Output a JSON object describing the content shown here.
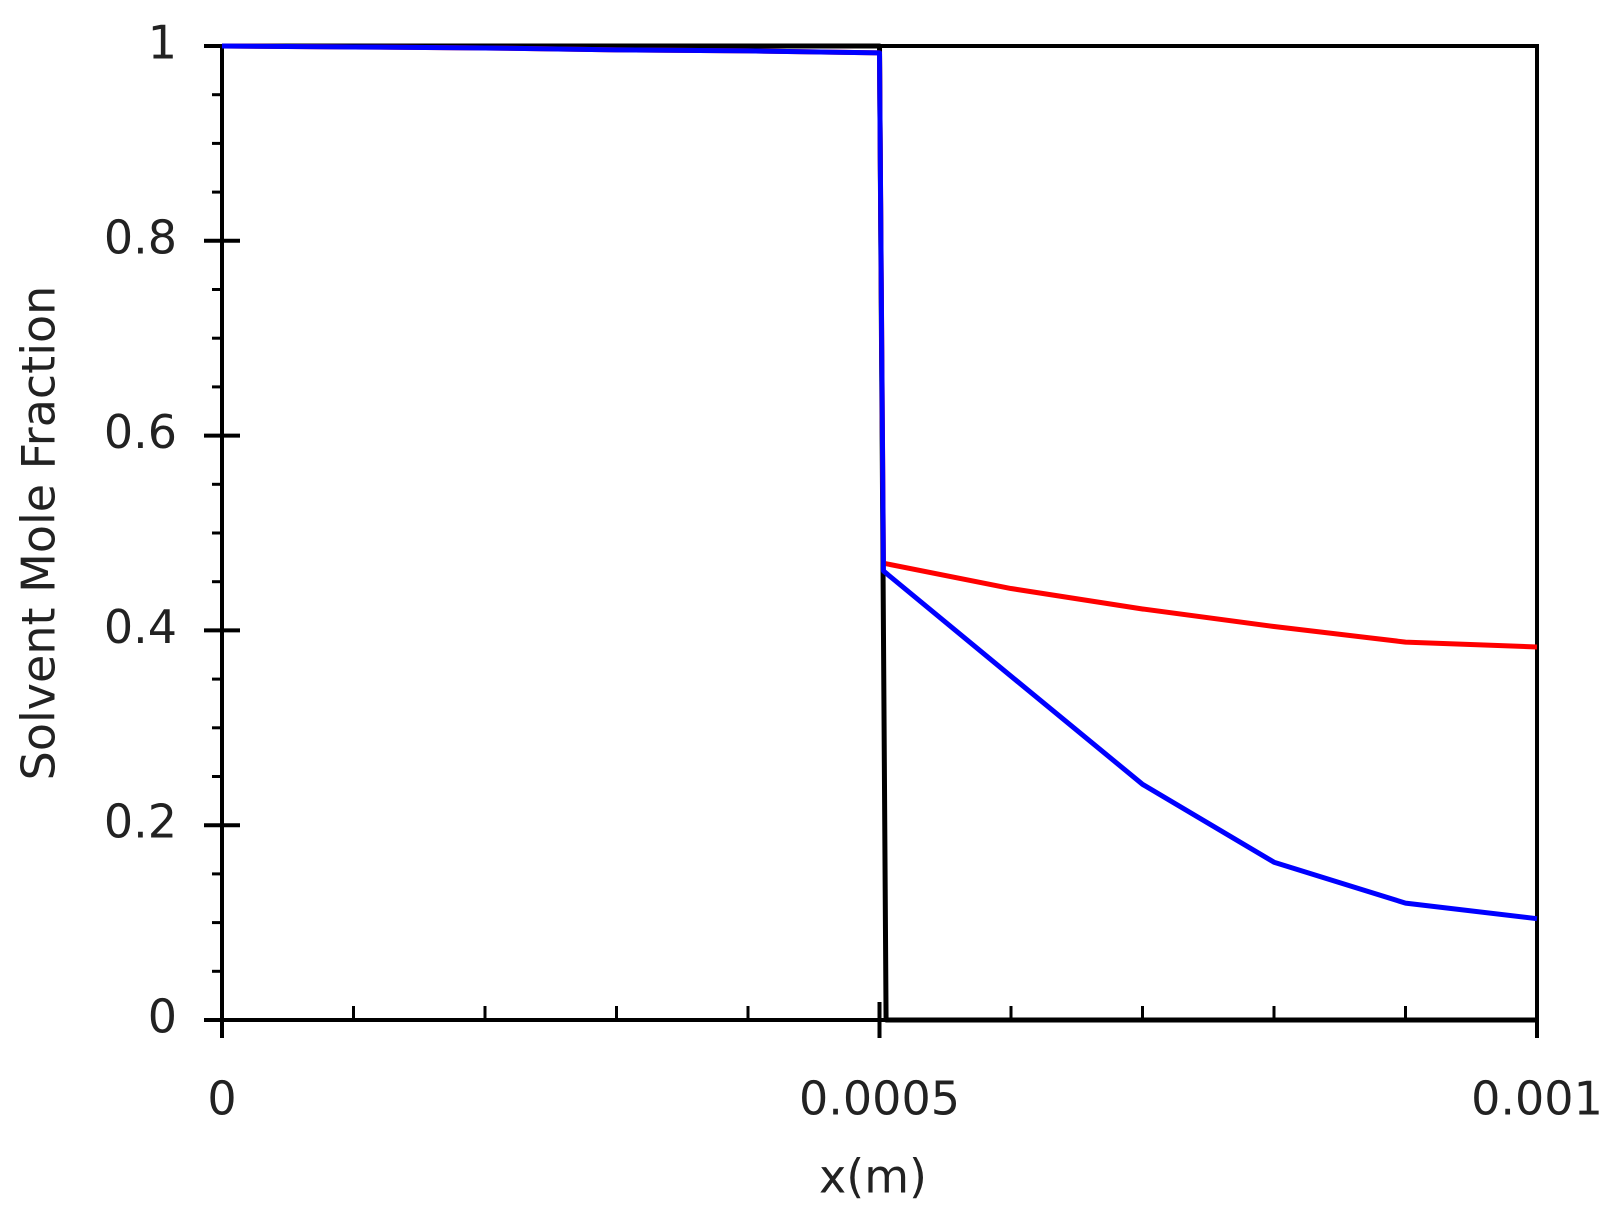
{
  "chart_data": {
    "type": "line",
    "x_label": "x(m)",
    "y_label": "Solvent Mole Fraction",
    "xlim": [
      0,
      0.001
    ],
    "ylim": [
      0,
      1
    ],
    "xticks": [
      0,
      0.0005,
      0.001
    ],
    "yticks": [
      0,
      0.2,
      0.4,
      0.6,
      0.8,
      1
    ],
    "x_minor_ticks": [
      0.0001,
      0.0002,
      0.0003,
      0.0004,
      0.0006,
      0.0007,
      0.0008,
      0.0009
    ],
    "y_minor_ticks": [
      0.05,
      0.1,
      0.15,
      0.25,
      0.3,
      0.35,
      0.45,
      0.5,
      0.55,
      0.65,
      0.7,
      0.75,
      0.85,
      0.9,
      0.95
    ],
    "series": [
      {
        "color": "#000000",
        "x": [
          0,
          0.0005,
          0.000505,
          0.001
        ],
        "values": [
          1,
          1,
          0,
          0
        ]
      },
      {
        "color": "#ff0000",
        "x": [
          0,
          0.0001,
          0.0002,
          0.0003,
          0.0004,
          0.0005,
          0.000503,
          0.0006,
          0.0007,
          0.0008,
          0.0009,
          0.001
        ],
        "values": [
          1,
          0.999,
          0.998,
          0.996,
          0.995,
          0.993,
          0.469,
          0.443,
          0.422,
          0.404,
          0.388,
          0.383
        ]
      },
      {
        "color": "#0000ff",
        "x": [
          0,
          0.0001,
          0.0002,
          0.0003,
          0.0004,
          0.0005,
          0.000503,
          0.0006,
          0.0007,
          0.0008,
          0.0009,
          0.001
        ],
        "values": [
          1,
          0.999,
          0.998,
          0.996,
          0.995,
          0.993,
          0.461,
          0.353,
          0.242,
          0.162,
          0.12,
          0.104
        ]
      }
    ]
  }
}
